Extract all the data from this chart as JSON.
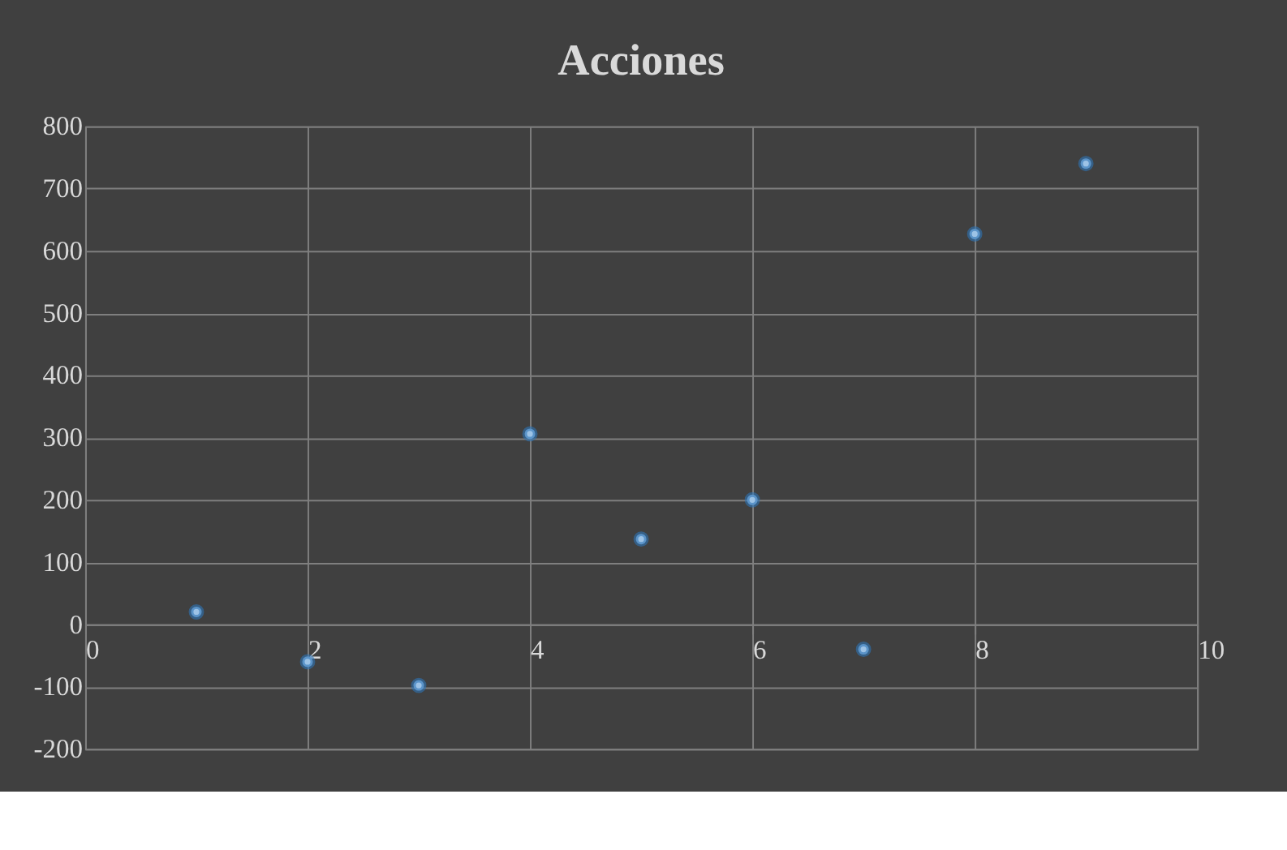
{
  "chart_data": {
    "type": "scatter",
    "title": "Acciones",
    "x": [
      1,
      2,
      3,
      4,
      5,
      6,
      7,
      8,
      9
    ],
    "series": [
      {
        "color": "#9dc3e6",
        "values": [
          20,
          -60,
          -98,
          306,
          137,
          200,
          -40,
          627,
          740
        ]
      }
    ],
    "xlim": [
      0,
      10
    ],
    "xticks": [
      0,
      2,
      4,
      6,
      8,
      10
    ],
    "ylim": [
      -200,
      800
    ],
    "yticks": [
      -200,
      -100,
      0,
      100,
      200,
      300,
      400,
      500,
      600,
      700,
      800
    ],
    "grid": true,
    "marker": "circle"
  }
}
